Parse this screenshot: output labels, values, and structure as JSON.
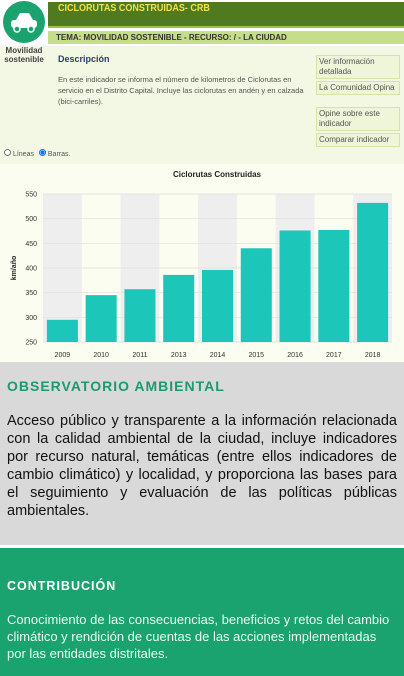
{
  "header": {
    "title": "CICLORUTAS CONSTRUIDAS- CRB",
    "theme": "TEMA: MOVILIDAD SOSTENIBLE - RECURSO: / - LA CIUDAD"
  },
  "sidebar": {
    "label": "Movilidad sostenible"
  },
  "description": {
    "heading": "Descripción",
    "text": "En este indicador se informa el número de kilometros de Ciclorutas en servicio en el Distrito Capital. Incluye las ciclorutas en andén y en calzada (bici-carriles)."
  },
  "links": [
    "Ver información detallada",
    "La Comunidad Opina",
    "Opine sobre este indicador",
    "Comparar indicador"
  ],
  "view_options": [
    "Líneas",
    "Barras."
  ],
  "chart_data": {
    "type": "bar",
    "title": "Ciclorutas Construidas",
    "y_label": "km/año",
    "categories": [
      "2009",
      "2010",
      "2011",
      "2013",
      "2014",
      "2015",
      "2016",
      "2017",
      "2018"
    ],
    "values": [
      295,
      345,
      357,
      386,
      396,
      440,
      476,
      477,
      532
    ],
    "color": "#1cc6b9",
    "ylim": [
      250,
      550
    ],
    "yticks": [
      250,
      300,
      350,
      400,
      450,
      500,
      550
    ],
    "grid": true
  },
  "observatorio": {
    "heading": "OBSERVATORIO AMBIENTAL",
    "text": "Acceso público y transparente a la información relacionada con la calidad ambiental de la ciudad, incluye indicadores por recurso natural, temáticas (entre ellos indicadores de cambio climático) y localidad, y proporciona las bases para el seguimiento y evaluación de las políticas públicas ambientales."
  },
  "contribucion": {
    "heading": "CONTRIBUCIÓN",
    "text": "Conocimiento de las consecuencias, beneficios y retos del cambio climático y rendición de cuentas de las acciones implementadas por las entidades distritales."
  }
}
